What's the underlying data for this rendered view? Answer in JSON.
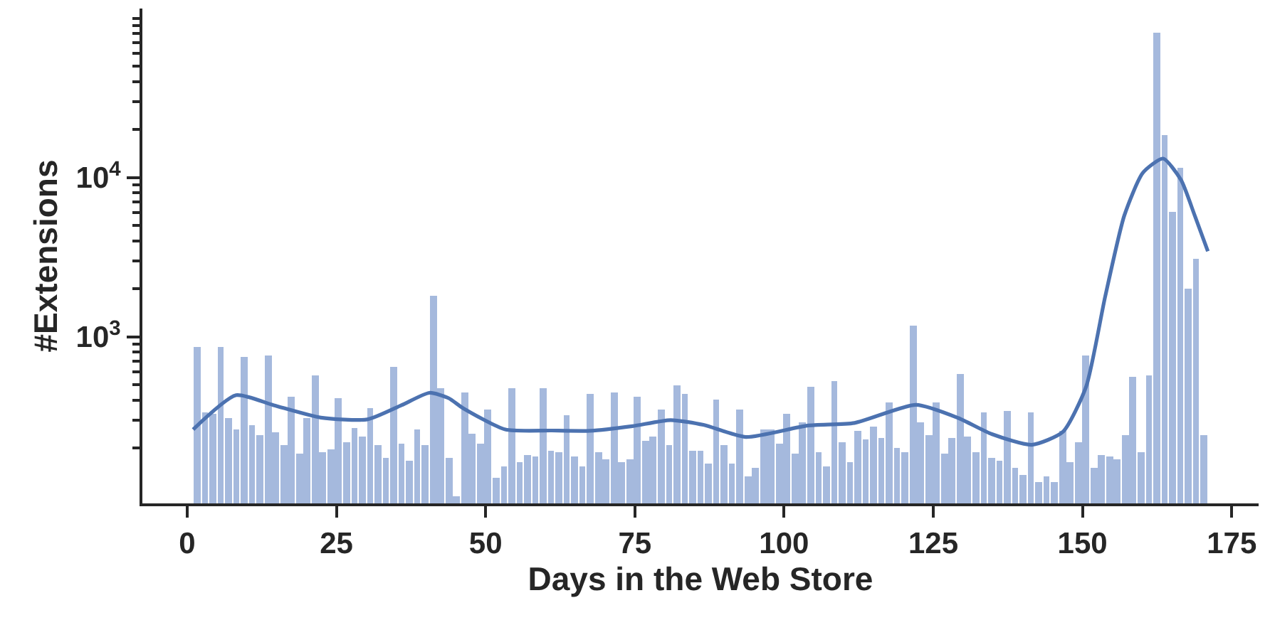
{
  "chart_data": {
    "type": "histogram",
    "xlabel": "Days in the Web Store",
    "ylabel": "#Extensions",
    "log": "y",
    "bins": [
      1.0,
      2.32,
      3.64,
      4.95,
      6.27,
      7.59,
      8.91,
      10.22,
      11.54,
      12.86,
      14.18,
      15.5,
      16.81,
      18.13,
      19.45,
      20.77,
      22.09,
      23.4,
      24.72,
      26.04,
      27.36,
      28.67,
      29.99,
      31.31,
      32.63,
      33.95,
      35.26,
      36.58,
      37.9,
      39.22,
      40.53,
      41.85,
      43.17,
      44.49,
      45.81,
      47.12,
      48.44,
      49.76,
      51.08,
      52.4,
      53.71,
      55.03,
      56.35,
      57.67,
      58.98,
      60.3,
      61.62,
      62.94,
      64.26,
      65.57,
      66.89,
      68.21,
      69.53,
      70.84,
      72.16,
      73.48,
      74.8,
      76.12,
      77.43,
      78.75,
      80.07,
      81.39,
      82.71,
      84.02,
      85.34,
      86.66,
      87.98,
      89.29,
      90.61,
      91.93,
      93.25,
      94.57,
      95.88,
      97.2,
      98.52,
      99.84,
      101.16,
      102.47,
      103.79,
      105.11,
      106.43,
      107.74,
      109.06,
      110.38,
      111.7,
      113.02,
      114.33,
      115.65,
      116.97,
      118.29,
      119.6,
      120.92,
      122.24,
      123.56,
      124.88,
      126.19,
      127.51,
      128.83,
      130.15,
      131.47,
      132.78,
      134.1,
      135.42,
      136.74,
      138.05,
      139.37,
      140.69,
      142.01,
      143.33,
      144.64,
      145.96,
      147.28,
      148.6,
      149.91,
      151.23,
      152.55,
      153.87,
      155.19,
      156.5,
      157.82,
      159.14,
      160.46,
      161.78,
      163.09,
      164.41,
      165.73,
      167.05,
      168.36,
      169.68,
      171.0
    ],
    "xlim": [
      -7.5,
      179.5
    ],
    "xticks": [
      0,
      25,
      50,
      75,
      100,
      125,
      150,
      175
    ],
    "ylim": [
      90,
      115000
    ],
    "yticks": [
      {
        "value": 200,
        "label": null
      },
      {
        "value": 300,
        "label": null
      },
      {
        "value": 400,
        "label": null
      },
      {
        "value": 500,
        "label": null
      },
      {
        "value": 600,
        "label": null
      },
      {
        "value": 700,
        "label": null
      },
      {
        "value": 800,
        "label": null
      },
      {
        "value": 900,
        "label": null
      },
      {
        "value": 1000,
        "label": "10$^{3}$"
      },
      {
        "value": 2000,
        "label": null
      },
      {
        "value": 3000,
        "label": null
      },
      {
        "value": 4000,
        "label": null
      },
      {
        "value": 5000,
        "label": null
      },
      {
        "value": 6000,
        "label": null
      },
      {
        "value": 7000,
        "label": null
      },
      {
        "value": 8000,
        "label": null
      },
      {
        "value": 9000,
        "label": null
      },
      {
        "value": 10000,
        "label": "10$^{4}$"
      },
      {
        "value": 20000,
        "label": null
      },
      {
        "value": 30000,
        "label": null
      },
      {
        "value": 40000,
        "label": null
      },
      {
        "value": 50000,
        "label": null
      },
      {
        "value": 60000,
        "label": null
      },
      {
        "value": 70000,
        "label": null
      },
      {
        "value": 80000,
        "label": null
      },
      {
        "value": 90000,
        "label": null
      },
      {
        "value": 100000,
        "label": null
      }
    ],
    "series": [
      {
        "color": "#a5b9dd",
        "values": [
          860,
          333,
          330,
          860,
          311,
          262,
          750,
          280,
          241,
          766,
          251,
          210,
          418,
          184,
          311,
          570,
          187,
          197,
          410,
          217,
          267,
          236,
          357,
          208,
          173,
          649,
          214,
          166,
          263,
          207,
          1820,
          476,
          173,
          100,
          445,
          248,
          212,
          347,
          130,
          154,
          479,
          163,
          182,
          179,
          473,
          193,
          188,
          322,
          177,
          155,
          438,
          187,
          170,
          448,
          162,
          170,
          421,
          222,
          236,
          349,
          208,
          499,
          438,
          194,
          193,
          160,
          403,
          208,
          160,
          347,
          132,
          151,
          262,
          262,
          214,
          331,
          184,
          290,
          486,
          188,
          154,
          531,
          216,
          163,
          258,
          225,
          273,
          233,
          387,
          200,
          188,
          1164,
          290,
          243,
          387,
          185,
          233,
          585,
          238,
          187,
          335,
          173,
          167,
          345,
          150,
          137,
          335,
          123,
          132,
          123,
          257,
          163,
          217,
          760,
          149,
          181,
          178,
          170,
          241,
          558,
          187,
          573,
          80700,
          18600,
          6050,
          11500,
          2015,
          3110,
          240
        ]
      },
      {
        "type": "line",
        "color": "#4c72b0",
        "line_style": "solid",
        "marker": "none",
        "x": [
          1.0,
          8.2,
          14.5,
          22.4,
          30.2,
          35.9,
          40.6,
          43.8,
          46.2,
          53.3,
          61.1,
          67.5,
          74.6,
          81.0,
          86.5,
          93.6,
          103.9,
          111.8,
          122.1,
          129.2,
          134.8,
          141.5,
          146.7,
          150.6,
          153.8,
          157.0,
          160.1,
          163.5,
          166.5,
          168.8,
          171.0
        ],
        "values": [
          262,
          430,
          372,
          311,
          303,
          372,
          445,
          412,
          357,
          262,
          258,
          257,
          275,
          300,
          280,
          235,
          277,
          288,
          374,
          309,
          245,
          210,
          253,
          486,
          1790,
          5770,
          10700,
          13150,
          9660,
          5770,
          3440
        ]
      }
    ]
  }
}
